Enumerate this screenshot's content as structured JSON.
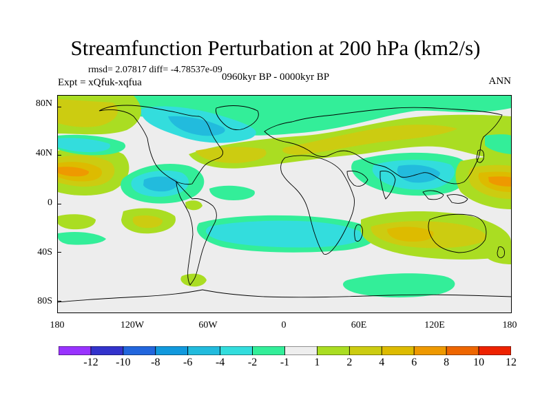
{
  "title": "Streamfunction Perturbation at 200 hPa (km2/s)",
  "stats": "rmsd= 2.07817  diff= -4.78537e-09",
  "experiment": "Expt = xQfuk-xqfua",
  "period": "0960kyr BP - 0000kyr BP",
  "season": "ANN",
  "axes": {
    "y_ticks": [
      "80N",
      "40N",
      "0",
      "40S",
      "80S"
    ],
    "x_ticks": [
      "180",
      "120W",
      "60W",
      "0",
      "60E",
      "120E",
      "180"
    ]
  },
  "colorbar": {
    "colors": [
      "#9933ff",
      "#3333cc",
      "#2266dd",
      "#1199dd",
      "#22bbdd",
      "#33dddd",
      "#33ee99",
      "#eeeeee",
      "#aadd22",
      "#cccc11",
      "#ddbb00",
      "#ee9900",
      "#ee6600",
      "#ee2200"
    ],
    "labels": [
      "-12",
      "-10",
      "-8",
      "-6",
      "-4",
      "-2",
      "-1",
      "1",
      "2",
      "4",
      "6",
      "8",
      "10",
      "12"
    ]
  },
  "field_colors": {
    "background": "#ededed",
    "pos1": "#aadd22",
    "pos2": "#cccc11",
    "pos3": "#ddbb00",
    "pos4": "#ee9900",
    "neg1": "#33ee99",
    "neg2": "#33dddd",
    "neg3": "#22bbdd",
    "neg4": "#1199dd"
  }
}
